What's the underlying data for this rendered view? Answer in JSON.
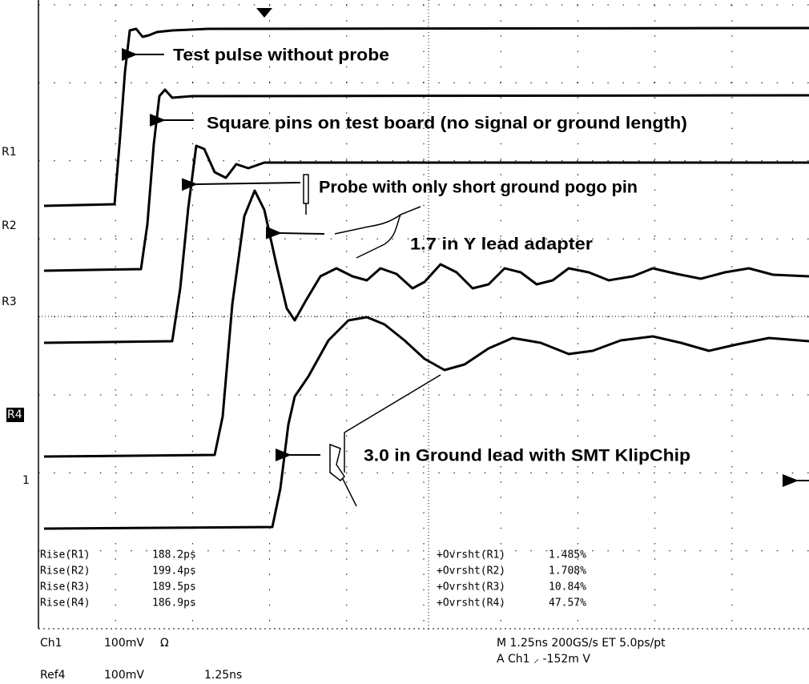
{
  "annotations": [
    "Test pulse without probe",
    "Square pins on test board (no signal or ground length)",
    "Probe with only short ground pogo pin",
    "1.7 in Y lead adapter",
    "3.0 in Ground lead with SMT KlipChip"
  ],
  "channel_markers": [
    "R1",
    "R2",
    "R3",
    "R4",
    "1"
  ],
  "measurements": {
    "rows": [
      [
        "Rise(R1)",
        "188.2ps",
        "+Ovrsht(R1)",
        "1.485%"
      ],
      [
        "Rise(R2)",
        "199.4ps",
        "+Ovrsht(R2)",
        "1.708%"
      ],
      [
        "Rise(R3)",
        "189.5ps",
        "+Ovrsht(R3)",
        "10.84%"
      ],
      [
        "Rise(R4)",
        "186.9ps",
        "+Ovrsht(R4)",
        "47.57%"
      ]
    ]
  },
  "status": {
    "ch1": "Ch1",
    "ch1_scale": "100mV",
    "ch1_coupling": "Ω",
    "timebase": "M 1.25ns 200GS/s ET 5.0ps/pt",
    "trigger": "A  Ch1  ⸝  -152m  V",
    "ref4": "Ref4",
    "ref4_scale": "100mV",
    "ref4_time": "1.25ns"
  }
}
